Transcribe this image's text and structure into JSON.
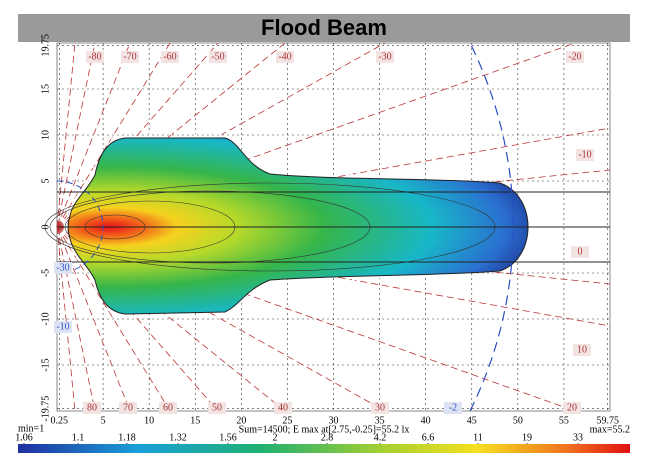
{
  "chart_data": {
    "type": "isolux",
    "title": "Flood Beam",
    "xlim": [
      0,
      60
    ],
    "ylim": [
      -20,
      20
    ],
    "xticks": [
      0.25,
      5,
      10,
      15,
      20,
      25,
      30,
      35,
      40,
      45,
      50,
      55,
      59.75
    ],
    "yticks": [
      19.75,
      15,
      10,
      5,
      0,
      -5,
      -10,
      -15,
      -19.75
    ],
    "grid": true,
    "annotations": [
      "-80",
      "-70",
      "-60",
      "-50",
      "-40",
      "-30",
      "-20",
      "-10",
      "0",
      "10",
      "80",
      "70",
      "60",
      "50",
      "40",
      "30",
      "20",
      "-30",
      "-10",
      "-2"
    ],
    "min_label": "min=1",
    "summary": "Sum=14500; E max at[2.75,-0.25]=55.2 lx",
    "max_label": "max=55.2",
    "colorbar": [
      1.06,
      1.1,
      1.18,
      1.32,
      1.56,
      2,
      2.8,
      4.2,
      6.6,
      11,
      19,
      33
    ]
  }
}
